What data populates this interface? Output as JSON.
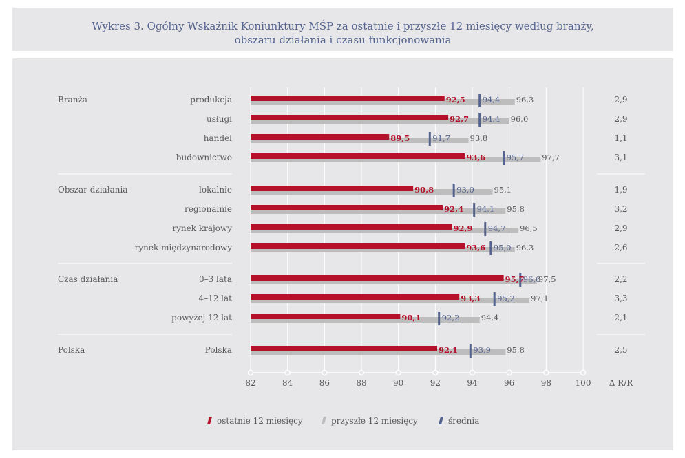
{
  "title": {
    "line1": "Wykres 3.  Ogólny Wskaźnik Koniunktury MŚP za ostatnie i przyszłe 12 miesięcy według branży,",
    "line2": "obszaru działania i czasu funkcjonowania"
  },
  "chart_data": {
    "type": "bar",
    "x_ticks": [
      82,
      84,
      86,
      88,
      90,
      92,
      94,
      96,
      98,
      100
    ],
    "x_tick_labels": [
      "82",
      "84",
      "86",
      "88",
      "90",
      "92",
      "94",
      "96",
      "98",
      "100"
    ],
    "xlim": [
      82,
      100
    ],
    "delta_header": "Δ R/R",
    "groups": [
      {
        "name": "Branża",
        "rows": [
          {
            "label": "produkcja",
            "last": 92.5,
            "last_label": "92,5",
            "next": 96.3,
            "next_label": "96,3",
            "avg": 94.4,
            "avg_label": "94,4",
            "delta": "2,9"
          },
          {
            "label": "usługi",
            "last": 92.7,
            "last_label": "92,7",
            "next": 96.0,
            "next_label": "96,0",
            "avg": 94.4,
            "avg_label": "94,4",
            "delta": "2,9"
          },
          {
            "label": "handel",
            "last": 89.5,
            "last_label": "89,5",
            "next": 93.8,
            "next_label": "93,8",
            "avg": 91.7,
            "avg_label": "91,7",
            "delta": "1,1"
          },
          {
            "label": "budownictwo",
            "last": 93.6,
            "last_label": "93,6",
            "next": 97.7,
            "next_label": "97,7",
            "avg": 95.7,
            "avg_label": "95,7",
            "delta": "3,1"
          }
        ]
      },
      {
        "name": "Obszar działania",
        "rows": [
          {
            "label": "lokalnie",
            "last": 90.8,
            "last_label": "90,8",
            "next": 95.1,
            "next_label": "95,1",
            "avg": 93.0,
            "avg_label": "93,0",
            "delta": "1,9"
          },
          {
            "label": "regionalnie",
            "last": 92.4,
            "last_label": "92,4",
            "next": 95.8,
            "next_label": "95,8",
            "avg": 94.1,
            "avg_label": "94,1",
            "delta": "3,2"
          },
          {
            "label": "rynek krajowy",
            "last": 92.9,
            "last_label": "92,9",
            "next": 96.5,
            "next_label": "96,5",
            "avg": 94.7,
            "avg_label": "94,7",
            "delta": "2,9"
          },
          {
            "label": "rynek międzynarodowy",
            "last": 93.6,
            "last_label": "93,6",
            "next": 96.3,
            "next_label": "96,3",
            "avg": 95.0,
            "avg_label": "95,0",
            "delta": "2,6"
          }
        ]
      },
      {
        "name": "Czas działania",
        "rows": [
          {
            "label": "0–3 lata",
            "last": 95.7,
            "last_label": "95,7",
            "next": 97.5,
            "next_label": "97,5",
            "avg": 96.6,
            "avg_label": "96,6",
            "delta": "2,2"
          },
          {
            "label": "4–12 lat",
            "last": 93.3,
            "last_label": "93,3",
            "next": 97.1,
            "next_label": "97,1",
            "avg": 95.2,
            "avg_label": "95,2",
            "delta": "3,3"
          },
          {
            "label": "powyżej 12 lat",
            "last": 90.1,
            "last_label": "90,1",
            "next": 94.4,
            "next_label": "94,4",
            "avg": 92.2,
            "avg_label": "92,2",
            "delta": "2,1"
          }
        ]
      },
      {
        "name": "Polska",
        "rows": [
          {
            "label": "Polska",
            "last": 92.1,
            "last_label": "92,1",
            "next": 95.8,
            "next_label": "95,8",
            "avg": 93.9,
            "avg_label": "93,9",
            "delta": "2,5"
          }
        ]
      }
    ],
    "legend": [
      {
        "key": "last",
        "label": "ostatnie 12 miesięcy",
        "color": "#b5112b"
      },
      {
        "key": "next",
        "label": "przyszłe 12 miesięcy",
        "color": "#bdbdbd"
      },
      {
        "key": "avg",
        "label": "średnia",
        "color": "#54638f"
      }
    ],
    "colors": {
      "last": "#b5112b",
      "next": "#bdbdbd",
      "avg": "#54638f",
      "last_text": "#b5112b",
      "next_text": "#595959",
      "avg_text": "#54638f",
      "grid": "#ffffff"
    }
  }
}
